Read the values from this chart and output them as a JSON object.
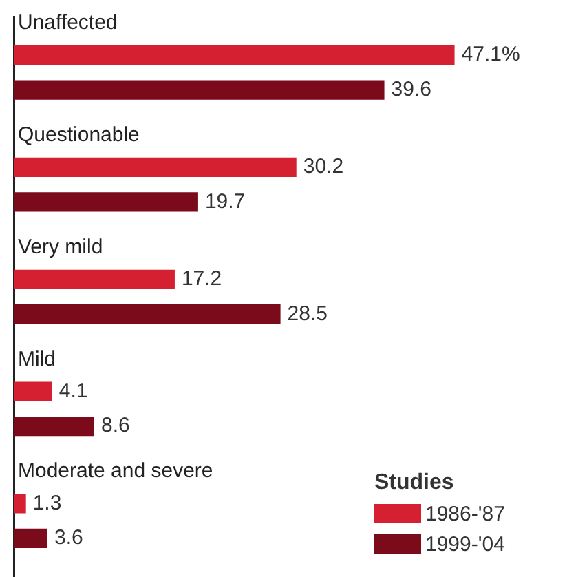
{
  "chart_data": {
    "type": "bar",
    "orientation": "horizontal",
    "categories": [
      "Unaffected",
      "Questionable",
      "Very mild",
      "Mild",
      "Moderate and severe"
    ],
    "legend": "bottom right",
    "legend_title": "Studies",
    "series": [
      {
        "name": "1986-'87",
        "color": "#d42031",
        "values": [
          47.1,
          30.2,
          17.2,
          4.1,
          1.3
        ],
        "value_labels": [
          "47.1%",
          "30.2",
          "17.2",
          "4.1",
          "1.3"
        ]
      },
      {
        "name": "1999-'04",
        "color": "#7b0b1a",
        "values": [
          39.6,
          19.7,
          28.5,
          8.6,
          3.6
        ],
        "value_labels": [
          "39.6",
          "19.7",
          "28.5",
          "8.6",
          "3.6"
        ]
      }
    ]
  }
}
